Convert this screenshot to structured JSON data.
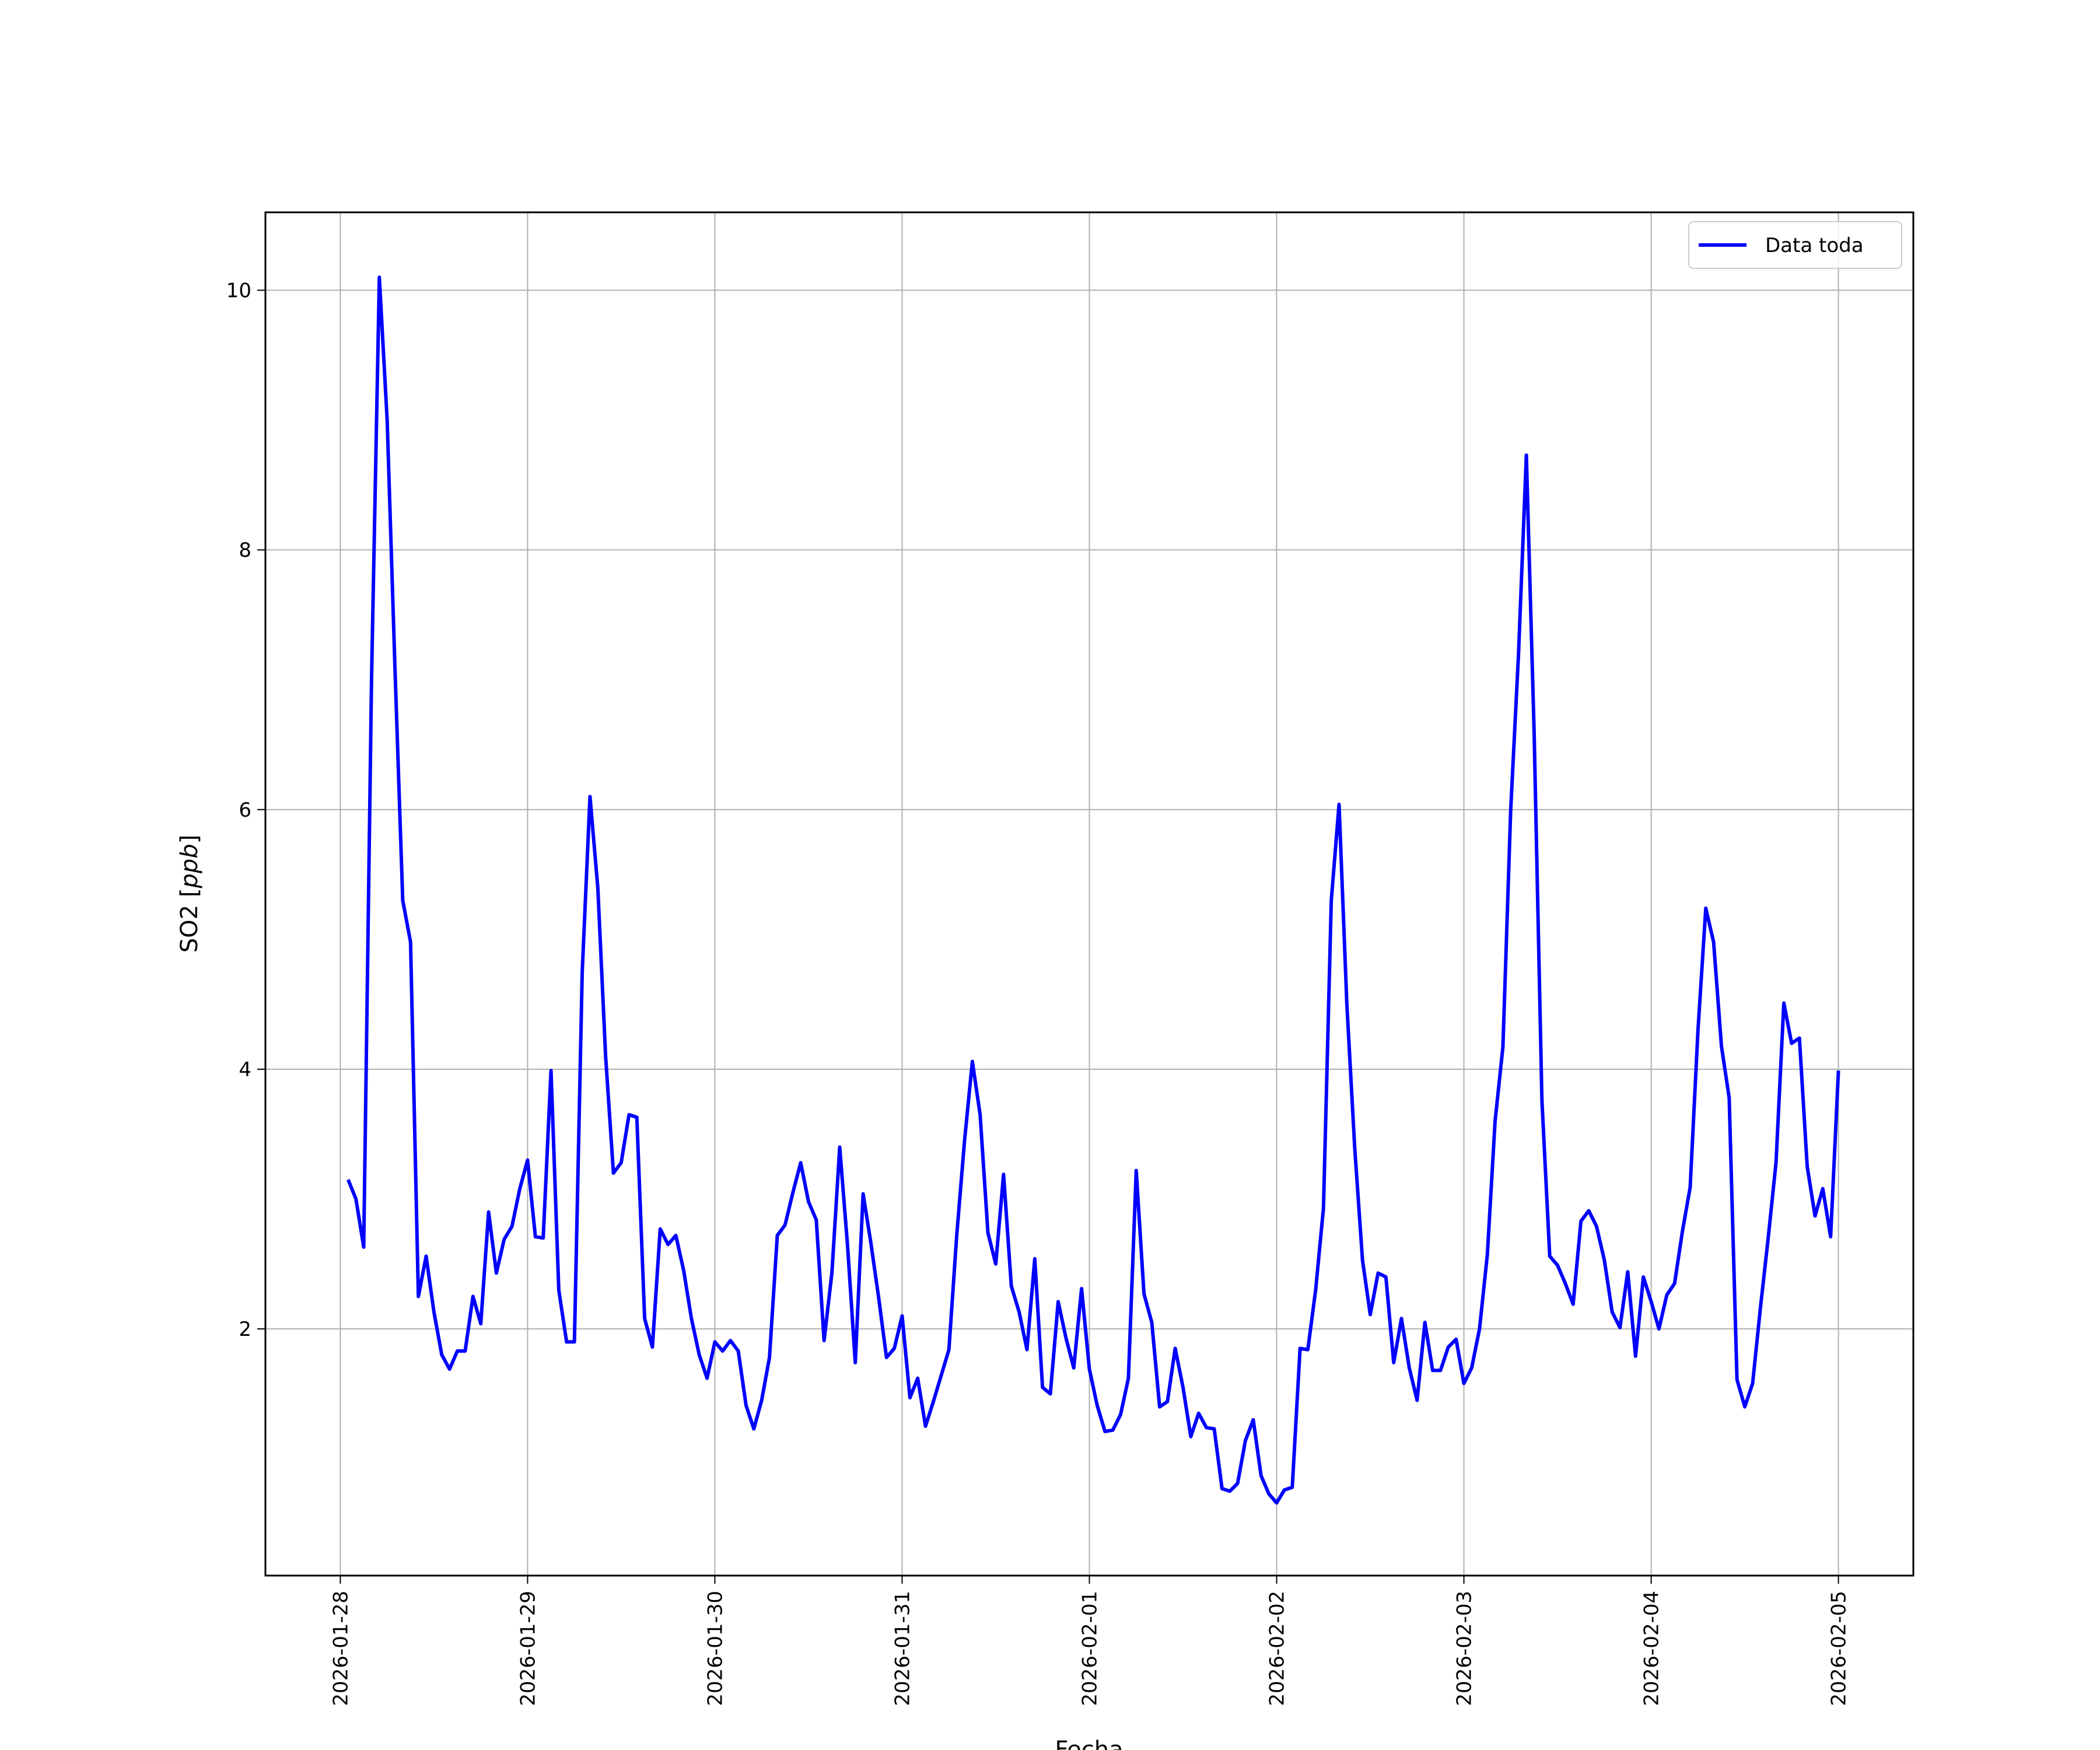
{
  "chart_data": {
    "type": "line",
    "xlabel": "Fecha",
    "ylabel": "SO2 [ppb]",
    "ylabel_main": "SO2 [",
    "ylabel_unit": "ppb",
    "ylabel_close": "]",
    "x_tick_labels": [
      "2026-01-28",
      "2026-01-29",
      "2026-01-30",
      "2026-01-31",
      "2026-02-01",
      "2026-02-02",
      "2026-02-03",
      "2026-02-04",
      "2026-02-05"
    ],
    "y_tick_labels": [
      "2",
      "4",
      "6",
      "8",
      "10"
    ],
    "y_ticks": [
      2,
      4,
      6,
      8,
      10
    ],
    "ylim": [
      0.1,
      10.6
    ],
    "xlim_days": [
      -0.4,
      8.4
    ],
    "grid": true,
    "legend_position": "top-right",
    "colors": {
      "series": "#0000ff",
      "grid": "#b0b0b0"
    },
    "series": [
      {
        "name": "Data toda",
        "x_start": "2026-01-28T01:00",
        "interval_hours": 1,
        "values": [
          3.15,
          3.0,
          2.63,
          7.0,
          10.1,
          9.0,
          7.1,
          5.3,
          4.98,
          2.25,
          2.56,
          2.13,
          1.8,
          1.69,
          1.83,
          1.83,
          2.25,
          2.04,
          2.9,
          2.43,
          2.69,
          2.79,
          3.08,
          3.3,
          2.71,
          2.7,
          3.99,
          2.3,
          1.9,
          1.9,
          4.75,
          6.1,
          5.4,
          4.1,
          3.2,
          3.28,
          3.65,
          3.63,
          2.08,
          1.86,
          2.77,
          2.65,
          2.72,
          2.45,
          2.08,
          1.8,
          1.62,
          1.9,
          1.83,
          1.91,
          1.83,
          1.41,
          1.23,
          1.45,
          1.78,
          2.72,
          2.8,
          3.05,
          3.28,
          2.98,
          2.84,
          1.91,
          2.43,
          3.4,
          2.65,
          1.74,
          3.04,
          2.66,
          2.24,
          1.78,
          1.85,
          2.1,
          1.47,
          1.62,
          1.25,
          1.44,
          1.64,
          1.84,
          2.72,
          3.45,
          4.06,
          3.65,
          2.74,
          2.5,
          3.19,
          2.33,
          2.13,
          1.84,
          2.54,
          1.55,
          1.5,
          2.21,
          1.93,
          1.7,
          2.31,
          1.69,
          1.41,
          1.21,
          1.22,
          1.34,
          1.62,
          3.22,
          2.27,
          2.05,
          1.4,
          1.44,
          1.85,
          1.55,
          1.17,
          1.35,
          1.24,
          1.23,
          0.77,
          0.75,
          0.81,
          1.14,
          1.3,
          0.87,
          0.73,
          0.66,
          0.76,
          0.78,
          1.85,
          1.84,
          2.3,
          2.93,
          5.3,
          6.04,
          4.5,
          3.4,
          2.53,
          2.11,
          2.43,
          2.4,
          1.74,
          2.08,
          1.7,
          1.45,
          2.05,
          1.68,
          1.68,
          1.86,
          1.92,
          1.58,
          1.7,
          2.0,
          2.57,
          3.6,
          4.17,
          6.0,
          7.2,
          8.73,
          6.6,
          3.76,
          2.56,
          2.49,
          2.35,
          2.19,
          2.83,
          2.91,
          2.79,
          2.53,
          2.13,
          2.01,
          2.44,
          1.79,
          2.4,
          2.21,
          2.0,
          2.26,
          2.35,
          2.75,
          3.09,
          4.3,
          5.24,
          4.98,
          4.18,
          3.78,
          1.61,
          1.4,
          1.58,
          2.16,
          2.7,
          3.28,
          4.51,
          4.2,
          4.24,
          3.25,
          2.87,
          3.08,
          2.71,
          3.99
        ]
      }
    ]
  }
}
